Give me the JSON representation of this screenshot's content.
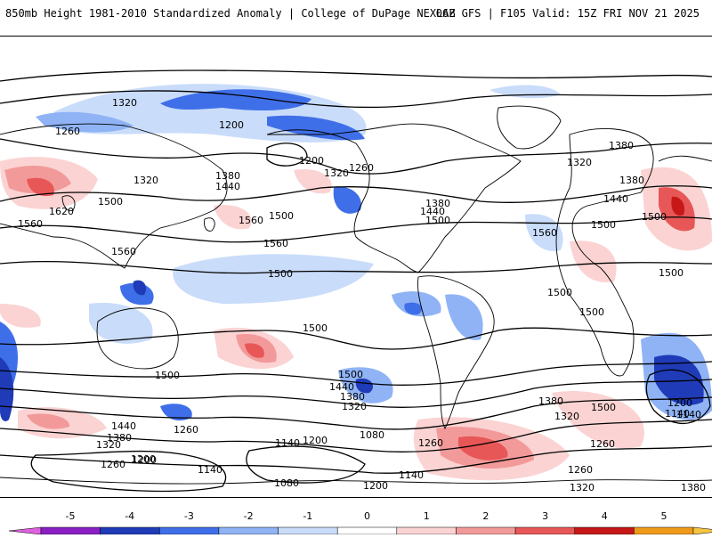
{
  "header": {
    "title": "850mb Height 1981-2010 Standardized Anomaly | College of DuPage NEXLAB",
    "run_info": "06Z GFS | F105 Valid: 15Z FRI NOV 21 2025"
  },
  "map": {
    "contour_labels": [
      "1320",
      "1260",
      "1200",
      "1320",
      "1380",
      "1440",
      "1560",
      "1500",
      "1620",
      "1560",
      "1560",
      "1500",
      "1380",
      "1500",
      "1560",
      "1200",
      "1320",
      "1260",
      "1380",
      "1440",
      "1500",
      "1320",
      "1380",
      "1440",
      "1500",
      "1560",
      "1500",
      "1500",
      "1500",
      "1500",
      "1500",
      "1500",
      "1440",
      "1380",
      "1320",
      "1500",
      "1440",
      "1380",
      "1320",
      "1260",
      "1200",
      "1140",
      "1080",
      "1260",
      "1140",
      "1200",
      "1140",
      "1200",
      "1080",
      "1140",
      "1260",
      "1200",
      "1140",
      "1320",
      "1500",
      "1260",
      "1380",
      "1320",
      "1200",
      "1260",
      "1140",
      "1380"
    ]
  },
  "colorbar": {
    "ticks": [
      "-5",
      "-4",
      "-3",
      "-2",
      "-1",
      "0",
      "1",
      "2",
      "3",
      "4",
      "5"
    ],
    "colors": [
      "#e060e0",
      "#8a1fc4",
      "#1f3bb8",
      "#3f6fe8",
      "#8fb3f5",
      "#c9dcfa",
      "#ffffff",
      "#fbd3d3",
      "#f29a9a",
      "#e85757",
      "#c61818",
      "#f09a1a",
      "#f5c542"
    ]
  }
}
